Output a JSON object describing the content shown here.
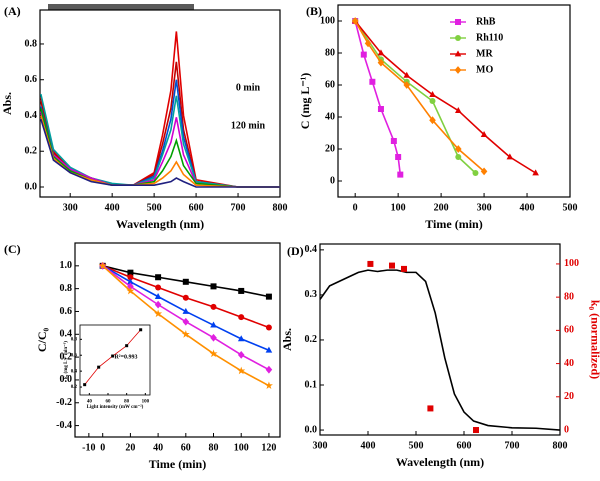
{
  "chart_data": [
    {
      "type": "line",
      "panel_label": "(A)",
      "x_label": "Wavelength (nm)",
      "y_label": "Abs.",
      "xlim": [
        228,
        800
      ],
      "ylim": [
        -0.056,
        0.99
      ],
      "xticks": [
        300,
        400,
        500,
        600,
        700,
        800
      ],
      "yticks": [
        {
          "value": 0,
          "label": "0.0"
        },
        0.2,
        0.4,
        0.6,
        0.8
      ],
      "annotations": [
        "0 min",
        "120 min"
      ],
      "x": [
        230,
        260,
        300,
        350,
        400,
        450,
        500,
        520,
        540,
        553,
        570,
        600,
        700,
        800
      ],
      "series": [
        {
          "color": "#e00000",
          "line": true,
          "values": [
            0.5,
            0.2,
            0.1,
            0.05,
            0.01,
            0.01,
            0.08,
            0.29,
            0.54,
            0.87,
            0.4,
            0.04,
            0,
            0
          ]
        },
        {
          "color": "#c00000",
          "line": true,
          "values": [
            0.48,
            0.19,
            0.1,
            0.05,
            0.01,
            0.01,
            0.07,
            0.24,
            0.44,
            0.7,
            0.32,
            0.03,
            0,
            0
          ]
        },
        {
          "color": "#0050d0",
          "line": true,
          "values": [
            0.45,
            0.18,
            0.09,
            0.04,
            0.01,
            0.01,
            0.06,
            0.2,
            0.38,
            0.6,
            0.28,
            0.03,
            0,
            0
          ]
        },
        {
          "color": "#00a0a0",
          "line": true,
          "values": [
            0.52,
            0.21,
            0.11,
            0.05,
            0.02,
            0.01,
            0.05,
            0.18,
            0.32,
            0.51,
            0.24,
            0.03,
            0,
            0
          ]
        },
        {
          "color": "#d000d0",
          "line": true,
          "values": [
            0.42,
            0.18,
            0.1,
            0.05,
            0.01,
            0.01,
            0.04,
            0.14,
            0.25,
            0.39,
            0.18,
            0.02,
            0,
            0
          ]
        },
        {
          "color": "#00a000",
          "line": true,
          "values": [
            0.44,
            0.17,
            0.09,
            0.04,
            0.01,
            0.01,
            0.03,
            0.09,
            0.17,
            0.26,
            0.12,
            0.02,
            0,
            0
          ]
        },
        {
          "color": "#ff8000",
          "line": true,
          "values": [
            0.4,
            0.16,
            0.08,
            0.04,
            0.01,
            0.01,
            0.02,
            0.05,
            0.09,
            0.14,
            0.07,
            0.01,
            0,
            0
          ]
        },
        {
          "color": "#202080",
          "line": true,
          "values": [
            0.38,
            0.15,
            0.08,
            0.03,
            0.01,
            0.01,
            0.01,
            0.02,
            0.03,
            0.05,
            0.03,
            0,
            0,
            0
          ]
        }
      ]
    },
    {
      "type": "line",
      "panel_label": "(B)",
      "x_label": "Time (min)",
      "y_label": "C (mg L⁻¹)",
      "xlim": [
        -40,
        500
      ],
      "ylim": [
        -10,
        110
      ],
      "xticks": [
        0,
        100,
        200,
        300,
        400,
        500
      ],
      "yticks": [
        0,
        20,
        40,
        60,
        80,
        100
      ],
      "legend": "upper right",
      "series": [
        {
          "name": "RhB",
          "color": "#e020e0",
          "marker": "square",
          "line": true,
          "x": [
            0,
            20,
            40,
            60,
            90,
            100,
            105
          ],
          "values": [
            100,
            79,
            62,
            45,
            25,
            15,
            4
          ]
        },
        {
          "name": "Rh110",
          "color": "#80d040",
          "marker": "circle",
          "line": true,
          "x": [
            0,
            60,
            120,
            180,
            240,
            280
          ],
          "values": [
            100,
            76,
            62,
            50,
            15,
            5
          ]
        },
        {
          "name": "MR",
          "color": "#e00000",
          "marker": "triangle",
          "line": true,
          "x": [
            0,
            60,
            120,
            180,
            240,
            300,
            360,
            420
          ],
          "values": [
            100,
            80,
            66,
            54,
            44,
            29,
            15,
            5
          ]
        },
        {
          "name": "MO",
          "color": "#ff8000",
          "marker": "diamond",
          "line": true,
          "x": [
            0,
            30,
            60,
            120,
            180,
            240,
            300
          ],
          "values": [
            100,
            86,
            74,
            60,
            38,
            20,
            6
          ]
        }
      ]
    },
    {
      "type": "line",
      "panel_label": "(C)",
      "x_label": "Time (min)",
      "y_label": "C/C₀",
      "xlim": [
        -20,
        128
      ],
      "ylim": [
        -0.5,
        1.2
      ],
      "xticks": [
        -10,
        0,
        20,
        40,
        60,
        80,
        100,
        120
      ],
      "yticks": [
        -0.4,
        -0.2,
        {
          "value": 0,
          "label": "0.0"
        },
        0.2,
        0.4,
        0.6,
        0.8,
        {
          "value": 1,
          "label": "1.0"
        }
      ],
      "x": [
        0,
        20,
        40,
        60,
        80,
        100,
        120
      ],
      "series": [
        {
          "color": "#000000",
          "marker": "square",
          "line": true,
          "values": [
            1,
            0.94,
            0.9,
            0.86,
            0.82,
            0.78,
            0.73
          ]
        },
        {
          "color": "#e00000",
          "marker": "circle",
          "line": true,
          "values": [
            1,
            0.9,
            0.81,
            0.72,
            0.64,
            0.55,
            0.46
          ]
        },
        {
          "color": "#0040f0",
          "marker": "triangle",
          "line": true,
          "values": [
            1,
            0.86,
            0.73,
            0.6,
            0.48,
            0.36,
            0.26
          ]
        },
        {
          "color": "#e020e0",
          "marker": "diamond",
          "line": true,
          "values": [
            1,
            0.82,
            0.66,
            0.51,
            0.37,
            0.22,
            0.09
          ]
        },
        {
          "color": "#ff9000",
          "marker": "star",
          "line": true,
          "values": [
            1,
            0.78,
            0.58,
            0.4,
            0.23,
            0.08,
            -0.05
          ]
        }
      ]
    },
    {
      "type": "line",
      "panel_label": "(D)",
      "x_label": "Wavelength (nm)",
      "y_label": "Abs.",
      "y2_label": "k₀ (normalized)",
      "y2_color": "#e00000",
      "xlim": [
        300,
        800
      ],
      "ylim": [
        -0.011,
        0.413
      ],
      "y2lim": [
        -3,
        112
      ],
      "xticks": [
        300,
        400,
        500,
        600,
        700,
        800
      ],
      "yticks": [
        {
          "value": 0,
          "label": "0.0"
        },
        0.1,
        0.2,
        0.3,
        0.4
      ],
      "y2ticks": [
        0,
        20,
        40,
        60,
        80,
        100
      ],
      "series": [
        {
          "color": "#000000",
          "line": true,
          "x": [
            300,
            320,
            340,
            360,
            380,
            400,
            420,
            440,
            460,
            480,
            500,
            520,
            540,
            560,
            580,
            600,
            620,
            650,
            700,
            750,
            800
          ],
          "values": [
            0.29,
            0.32,
            0.33,
            0.34,
            0.35,
            0.355,
            0.352,
            0.355,
            0.355,
            0.35,
            0.35,
            0.33,
            0.26,
            0.16,
            0.08,
            0.04,
            0.02,
            0.01,
            0.005,
            0.004,
            0
          ]
        },
        {
          "color": "#e00000",
          "marker": "square",
          "axis": "y2",
          "x": [
            405,
            450,
            475,
            530,
            625
          ],
          "values": [
            100,
            99,
            97,
            13,
            0
          ]
        }
      ]
    },
    {
      "type": "scatter",
      "x_label": "Light intensity (mW cm⁻²)",
      "y_label": "k₀ (mg L⁻¹ min⁻¹)",
      "xlim": [
        30,
        105
      ],
      "ylim": [
        0.1,
        0.98
      ],
      "xticks": [
        40,
        60,
        80,
        100
      ],
      "yticks": [
        0.2,
        0.4,
        0.6,
        0.8
      ],
      "annotations": [
        "R²=0.993"
      ],
      "series": [
        {
          "color": "#000000",
          "marker": "square",
          "line": true,
          "line_color": "#e00000",
          "x": [
            35,
            50,
            65,
            80,
            95
          ],
          "values": [
            0.23,
            0.45,
            0.59,
            0.72,
            0.92
          ]
        }
      ]
    }
  ]
}
